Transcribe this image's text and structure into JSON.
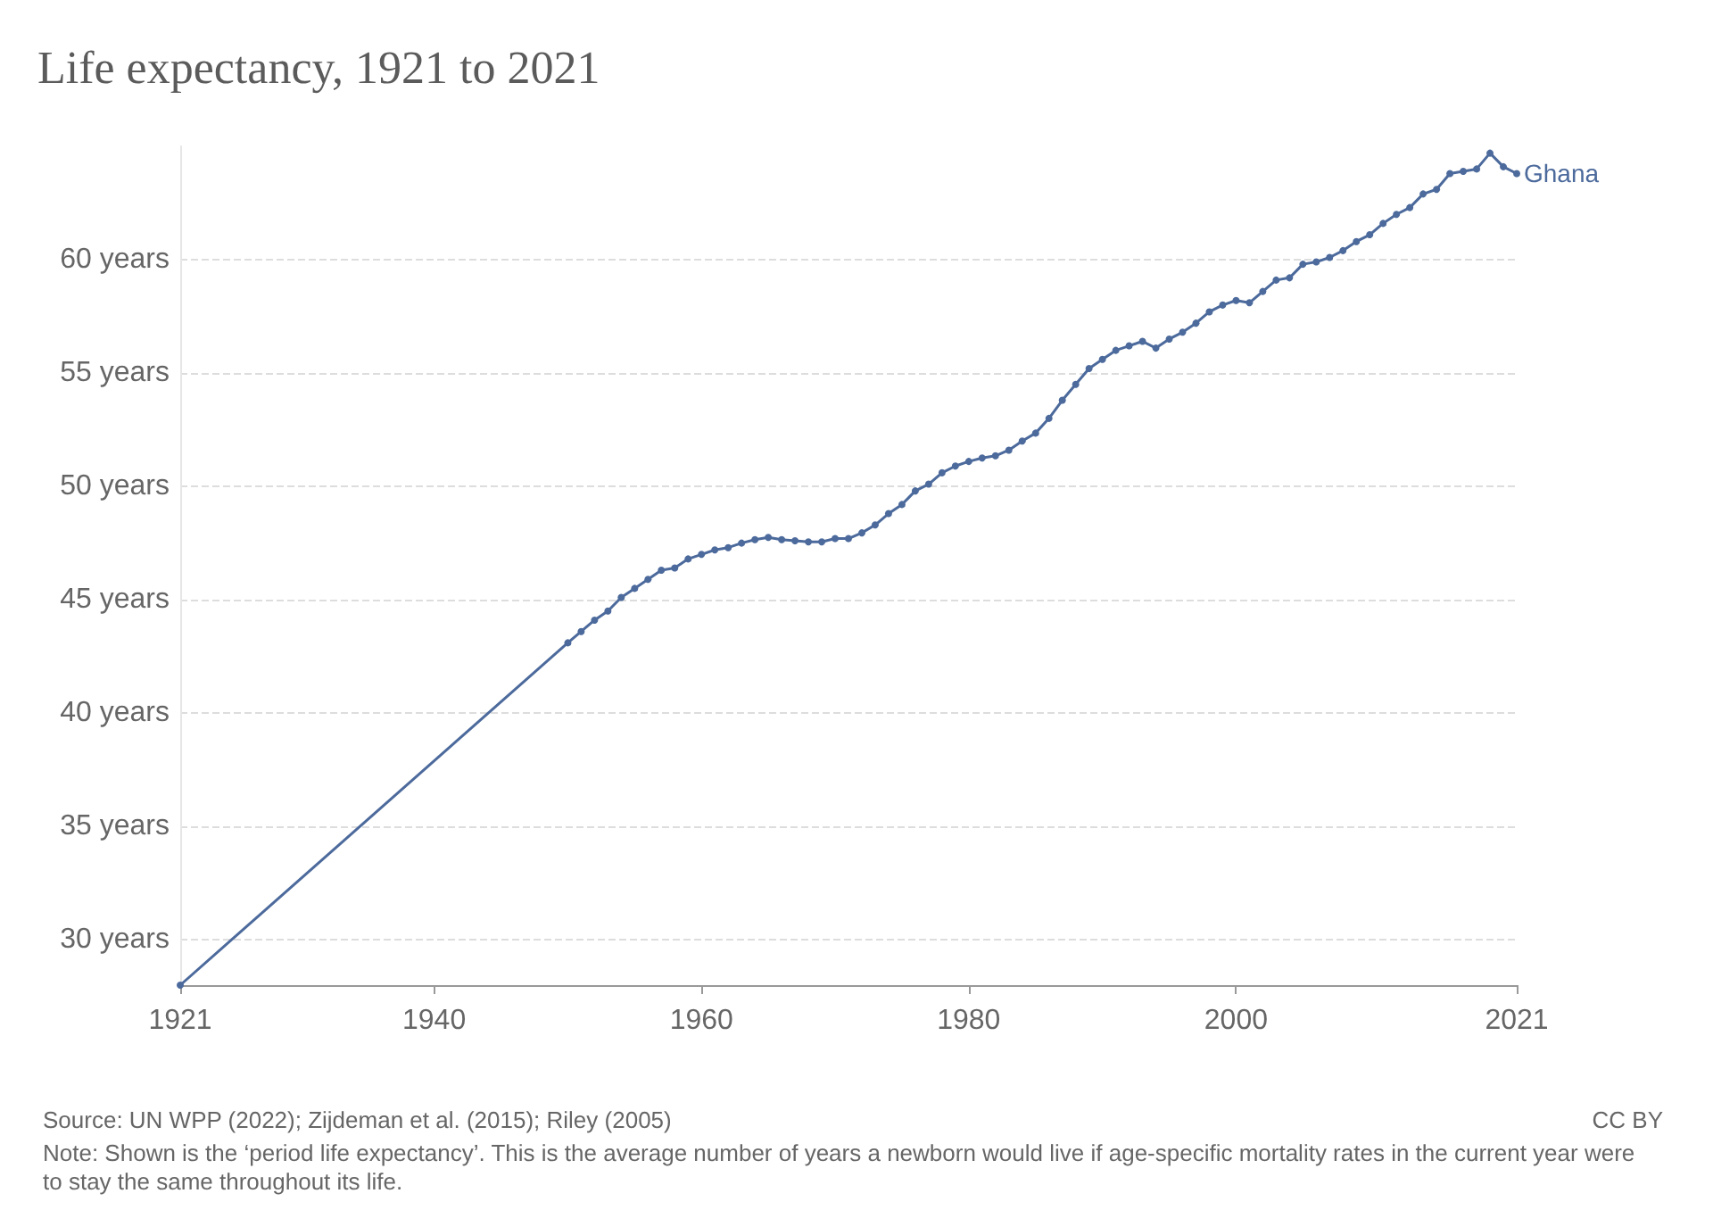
{
  "chart_data": {
    "type": "line",
    "title": "Life expectancy, 1921 to 2021",
    "x": [
      1921,
      1950,
      1951,
      1952,
      1953,
      1954,
      1955,
      1956,
      1957,
      1958,
      1959,
      1960,
      1961,
      1962,
      1963,
      1964,
      1965,
      1966,
      1967,
      1968,
      1969,
      1970,
      1971,
      1972,
      1973,
      1974,
      1975,
      1976,
      1977,
      1978,
      1979,
      1980,
      1981,
      1982,
      1983,
      1984,
      1985,
      1986,
      1987,
      1988,
      1989,
      1990,
      1991,
      1992,
      1993,
      1994,
      1995,
      1996,
      1997,
      1998,
      1999,
      2000,
      2001,
      2002,
      2003,
      2004,
      2005,
      2006,
      2007,
      2008,
      2009,
      2010,
      2011,
      2012,
      2013,
      2014,
      2015,
      2016,
      2017,
      2018,
      2019,
      2020,
      2021
    ],
    "series": [
      {
        "name": "Ghana",
        "color": "#4c6a9c",
        "values": [
          28.0,
          43.1,
          43.6,
          44.1,
          44.5,
          45.1,
          45.5,
          45.9,
          46.3,
          46.4,
          46.8,
          47.0,
          47.2,
          47.3,
          47.5,
          47.65,
          47.75,
          47.65,
          47.6,
          47.55,
          47.55,
          47.7,
          47.7,
          47.95,
          48.3,
          48.8,
          49.2,
          49.8,
          50.1,
          50.6,
          50.9,
          51.1,
          51.25,
          51.35,
          51.6,
          52.0,
          52.35,
          53.0,
          53.8,
          54.5,
          55.2,
          55.6,
          56.0,
          56.2,
          56.4,
          56.1,
          56.5,
          56.8,
          57.2,
          57.7,
          58.0,
          58.2,
          58.1,
          58.6,
          59.1,
          59.2,
          59.8,
          59.9,
          60.1,
          60.4,
          60.8,
          61.1,
          61.6,
          62.0,
          62.3,
          62.9,
          63.1,
          63.8,
          63.9,
          64.0,
          64.7,
          64.1,
          63.8
        ]
      }
    ],
    "xlim": [
      1921,
      2021
    ],
    "xticks": [
      1921,
      1940,
      1960,
      1980,
      2000,
      2021
    ],
    "yticks": [
      {
        "value": 30,
        "label": "30 years"
      },
      {
        "value": 35,
        "label": "35 years"
      },
      {
        "value": 40,
        "label": "40 years"
      },
      {
        "value": 45,
        "label": "45 years"
      },
      {
        "value": 50,
        "label": "50 years"
      },
      {
        "value": 55,
        "label": "55 years"
      },
      {
        "value": 60,
        "label": "60 years"
      }
    ],
    "ylim": [
      28,
      65
    ],
    "grid": "y",
    "marker": "circle",
    "line_style": "solid",
    "legend": "right",
    "annotations": [
      "Source: UN WPP (2022); Zijdeman et al. (2015); Riley (2005)",
      "CC BY",
      "Note: Shown is the ‘period life expectancy’. This is the average number of years a newborn would live if age-specific mortality rates in the current year were to stay the same throughout its life."
    ]
  }
}
